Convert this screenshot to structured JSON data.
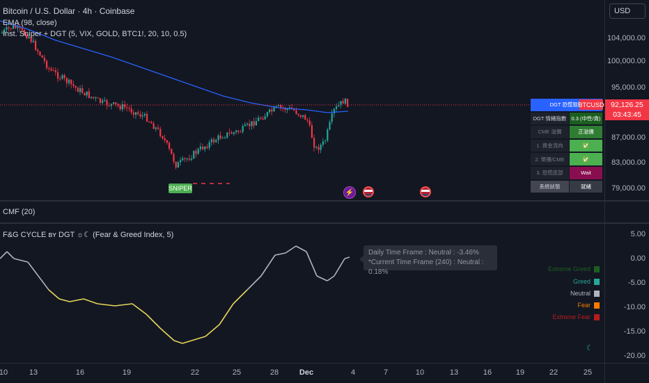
{
  "main_pane": {
    "title": "Bitcoin / U.S. Dollar · 4h · Coinbase",
    "ema_label": "EMA (98, close)",
    "indicator_label": "Inst. Sniper + DGT (5, VIX, GOLD, BTC1!, 20, 10, 0.5)",
    "sniper_label": "SNIPER"
  },
  "currency_button": "USD",
  "price_axis": [
    "104,000.00",
    "100,000.00",
    "95,000.00",
    "87,000.00",
    "83,000.00",
    "79,000.00"
  ],
  "price_tag": {
    "symbol": "BTCUSD",
    "price": "92,126.25",
    "countdown": "03:43:45"
  },
  "dgt_table": {
    "rows": [
      {
        "label": "DGT 恐慌狙擊",
        "value": ""
      },
      {
        "label": "DGT 情緒指數",
        "value": "0.3 (中性/貪)"
      },
      {
        "label": "CME 溢價",
        "value": "正溢價"
      },
      {
        "label": "1. 資金流向",
        "value": "✅"
      },
      {
        "label": "2. 幣價/CME",
        "value": "✅"
      },
      {
        "label": "3. 恐慌底部",
        "value": "Wait"
      },
      {
        "label": "系統狀態",
        "value": "就緒"
      }
    ],
    "colors": {
      "header": "#2962ff",
      "positive": "#4caf50",
      "wait": "#880e4f",
      "neutral": "#363a45"
    }
  },
  "cmf_pane": {
    "label": "CMF (20)"
  },
  "fg_pane": {
    "label": "F&G CYCLE ʙʏ DGT ☼☾ (Fear & Greed Index, 5)",
    "tooltip_line1": "Daily Time Frame : Neutral : -3.46%",
    "tooltip_line2": "*Current Time Frame (240) : Neutral : 0.18%",
    "legend": [
      {
        "label": "Extreme Greed",
        "color": "#1b5e20"
      },
      {
        "label": "Greed",
        "color": "#26a69a"
      },
      {
        "label": "Neutral",
        "color": "#b2b5be"
      },
      {
        "label": "Fear",
        "color": "#f57c00"
      },
      {
        "label": "Extreme Fear",
        "color": "#b71c1c"
      }
    ],
    "axis": [
      "5.00",
      "0.00",
      "-5.00",
      "-10.00",
      "-15.00",
      "-20.00"
    ]
  },
  "time_axis": [
    "10",
    "13",
    "16",
    "19",
    "22",
    "25",
    "28",
    "Dec",
    "4",
    "7",
    "10",
    "13",
    "16",
    "19",
    "22",
    "25"
  ],
  "colors": {
    "bg": "#131722",
    "up": "#26a69a",
    "down": "#f23645",
    "ema": "#2962ff"
  }
}
